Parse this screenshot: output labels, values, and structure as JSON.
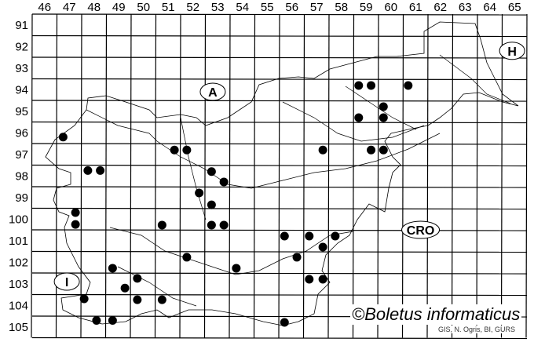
{
  "map": {
    "columns": [
      "46",
      "47",
      "48",
      "49",
      "50",
      "51",
      "52",
      "53",
      "54",
      "55",
      "56",
      "57",
      "58",
      "59",
      "60",
      "61",
      "62",
      "63",
      "64",
      "65"
    ],
    "rows": [
      "91",
      "92",
      "93",
      "94",
      "95",
      "96",
      "97",
      "98",
      "99",
      "100",
      "101",
      "102",
      "103",
      "104",
      "105"
    ],
    "countries": [
      {
        "code": "A",
        "col": 52.8,
        "row": 94.1
      },
      {
        "code": "H",
        "col": 64.9,
        "row": 92.2
      },
      {
        "code": "I",
        "col": 46.9,
        "row": 102.9
      },
      {
        "code": "CRO",
        "col": 61.2,
        "row": 100.5
      }
    ],
    "records": [
      [
        46.75,
        96.2
      ],
      [
        47.75,
        97.75
      ],
      [
        48.25,
        97.75
      ],
      [
        51.25,
        96.8
      ],
      [
        51.75,
        96.8
      ],
      [
        52.75,
        97.8
      ],
      [
        53.25,
        98.28
      ],
      [
        52.25,
        98.79
      ],
      [
        52.75,
        99.34
      ],
      [
        47.25,
        99.7
      ],
      [
        47.25,
        100.25
      ],
      [
        50.75,
        100.28
      ],
      [
        52.75,
        100.28
      ],
      [
        53.25,
        100.28
      ],
      [
        51.75,
        101.77
      ],
      [
        48.75,
        102.28
      ],
      [
        49.75,
        102.75
      ],
      [
        49.25,
        103.2
      ],
      [
        49.75,
        103.74
      ],
      [
        50.75,
        103.74
      ],
      [
        47.6,
        103.7
      ],
      [
        48.1,
        104.7
      ],
      [
        48.75,
        104.7
      ],
      [
        53.75,
        102.28
      ],
      [
        58.7,
        93.81
      ],
      [
        59.2,
        93.81
      ],
      [
        60.7,
        93.81
      ],
      [
        59.7,
        94.79
      ],
      [
        59.7,
        95.3
      ],
      [
        58.7,
        95.3
      ],
      [
        57.25,
        96.8
      ],
      [
        59.2,
        96.8
      ],
      [
        59.7,
        96.8
      ],
      [
        55.7,
        100.79
      ],
      [
        56.7,
        100.79
      ],
      [
        57.75,
        100.79
      ],
      [
        57.25,
        101.3
      ],
      [
        56.2,
        101.77
      ],
      [
        56.7,
        102.79
      ],
      [
        57.25,
        102.79
      ],
      [
        55.7,
        104.79
      ]
    ],
    "dot_color": "#000000",
    "grid_color": "#000000"
  },
  "watermark": "©Boletus informaticus",
  "credit": "GIS, N. Ogris, BI, GURS"
}
